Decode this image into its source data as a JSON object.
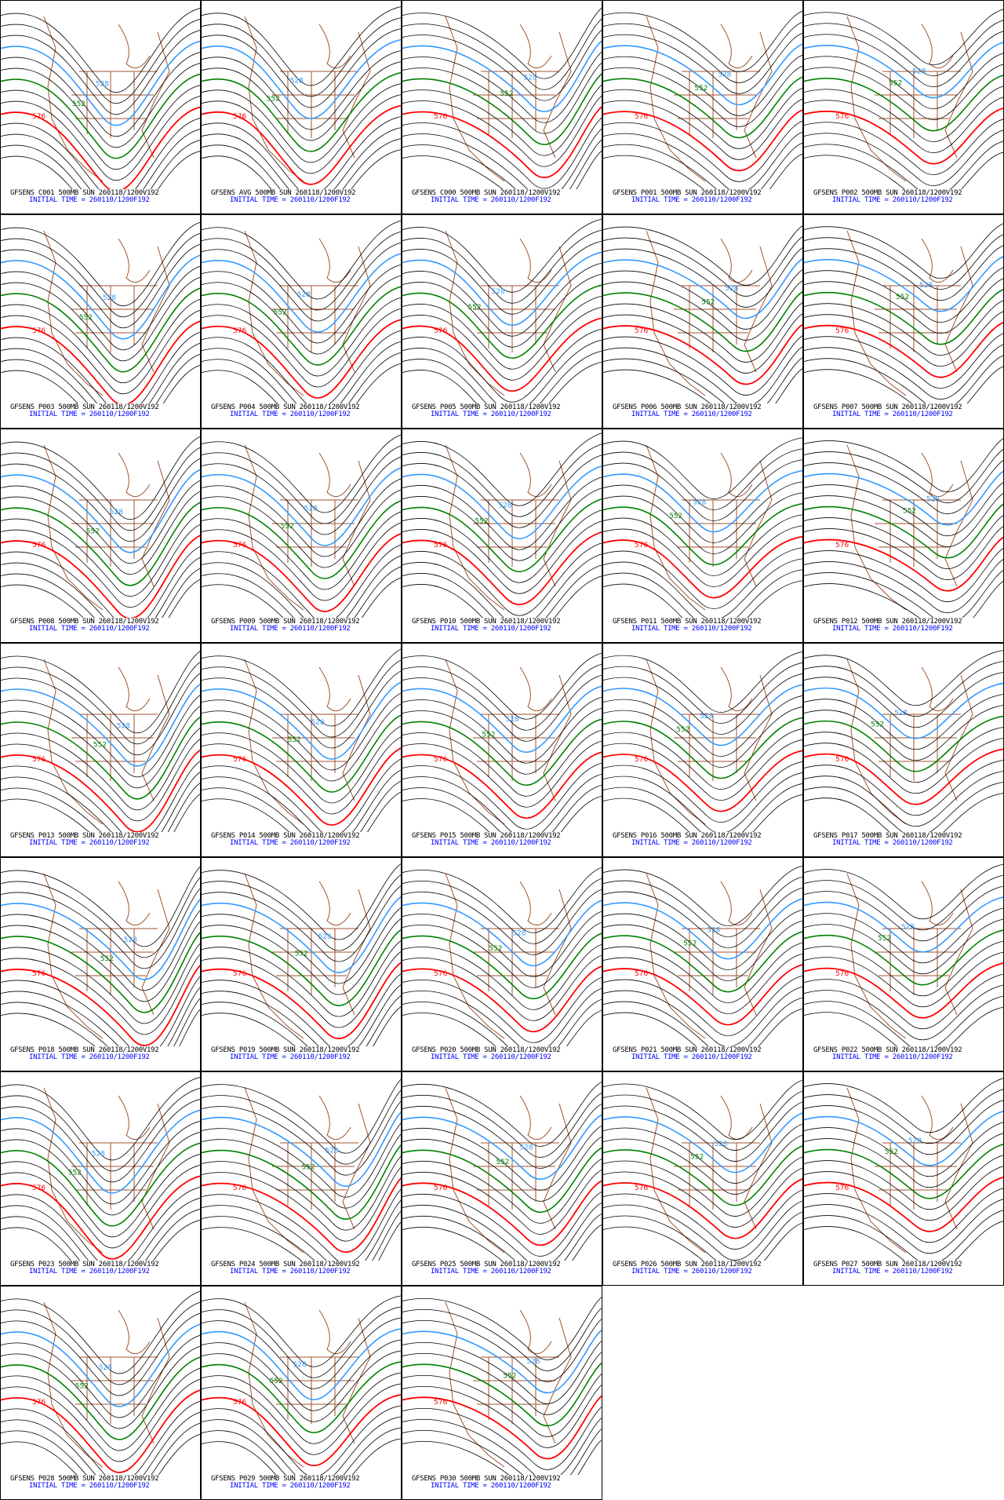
{
  "layout": {
    "columns": 5,
    "rows": 7
  },
  "product": "GFSENS",
  "level": "500MB",
  "valid_text": "SUN 260118/1200V192",
  "initial_time_text": "INITIAL TIME = 260110/1200F192",
  "members": [
    "C001",
    "AVG",
    "C000",
    "P001",
    "P002",
    "P003",
    "P004",
    "P005",
    "P006",
    "P007",
    "P008",
    "P009",
    "P010",
    "P011",
    "P012",
    "P013",
    "P014",
    "P015",
    "P016",
    "P017",
    "P018",
    "P019",
    "P020",
    "P021",
    "P022",
    "P023",
    "P024",
    "P025",
    "P026",
    "P027",
    "P028",
    "P029",
    "P030"
  ],
  "panels": [],
  "contour_labels": {
    "low": "528",
    "mid": "552",
    "high": "576"
  },
  "colors": {
    "contour": "#000000",
    "low": "#3399ff",
    "mid": "#008000",
    "high": "#ff0000",
    "map": "#a0522d",
    "caption": "#000000",
    "initial_time": "#0000ff"
  }
}
